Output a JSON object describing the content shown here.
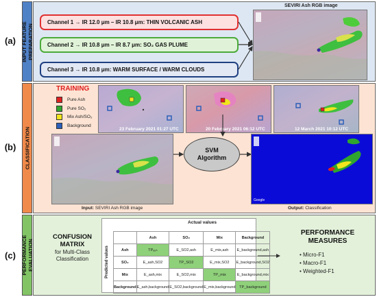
{
  "sections": {
    "a": {
      "letter": "(a)",
      "label": "INPUT FEATURE\nPREPARATION"
    },
    "b": {
      "letter": "(b)",
      "label": "CLASSIFICATION"
    },
    "c": {
      "letter": "(c)",
      "label": "PERFORMANCE\nEVALUATION"
    }
  },
  "input": {
    "channels": [
      {
        "text": "Channel 1 → IR 12.0 μm – IR 10.8 μm: THIN VOLCANIC ASH",
        "border": "#e03030",
        "fill": "#fde0e0"
      },
      {
        "text": "Channel 2 → IR 10.8 μm – IR 8.7 μm: SO₂ GAS PLUME",
        "border": "#4caa3a",
        "fill": "#e0f3d8"
      },
      {
        "text": "Channel 3 → IR 10.8 μm: WARM SURFACE / WARM CLOUDS",
        "border": "#1f3f80",
        "fill": "#e2e8f4"
      }
    ],
    "image_title": "SEVIRI Ash RGB image"
  },
  "training": {
    "title": "TRAINING",
    "legend": [
      {
        "label": "Pure Ash",
        "color": "#e02020"
      },
      {
        "label": "Pure SO₂",
        "color": "#2fa52f"
      },
      {
        "label": "Mix Ash/SO₂",
        "color": "#f2e51d"
      },
      {
        "label": "Background",
        "color": "#2d5fb8"
      }
    ],
    "dates": [
      "23 February 2021 01:27 UTC",
      "20 February 2021 06:12 UTC",
      "12 March 2021 10:12 UTC"
    ]
  },
  "classification": {
    "algorithm": "SVM\nAlgorithm",
    "input_caption_bold": "Input:",
    "input_caption": " SEVIRI Ash RGB image",
    "output_caption_bold": "Output:",
    "output_caption": " Classification",
    "map_credit": "Google"
  },
  "evaluation": {
    "title": "CONFUSION\nMATRIX",
    "subtitle": "for Multi-Class\nClassification",
    "actual_label": "Actual values",
    "predicted_label": "Predicted values",
    "columns": [
      "Ash",
      "SO₂",
      "Mix",
      "Background"
    ],
    "rows": [
      {
        "label": "Ash",
        "cells": [
          "TPₐₛₕ",
          "E_SO2,ash",
          "E_mix,ash",
          "E_background,ash"
        ]
      },
      {
        "label": "SO₂",
        "cells": [
          "E_ash,SO2",
          "TP_SO2",
          "E_mix,SO2",
          "E_background,SO2"
        ]
      },
      {
        "label": "Mix",
        "cells": [
          "E_ash,mix",
          "E_SO2,mix",
          "TP_mix",
          "E_background,mix"
        ]
      },
      {
        "label": "Background",
        "cells": [
          "E_ash,background",
          "E_SO2,background",
          "E_mix,background",
          "TP_background"
        ]
      }
    ],
    "measures_title": "PERFORMANCE\nMEASURES",
    "measures": [
      "Micro-F1",
      "Macro-F1",
      "Weighted-F1"
    ]
  },
  "colors": {
    "a_side": "#4f81c7",
    "a_bg": "#dde7f3",
    "b_side": "#f08a4b",
    "b_bg": "#fce3d3",
    "c_side": "#82c465",
    "c_bg": "#e3f1da",
    "tp_cell": "#8fd07a"
  }
}
